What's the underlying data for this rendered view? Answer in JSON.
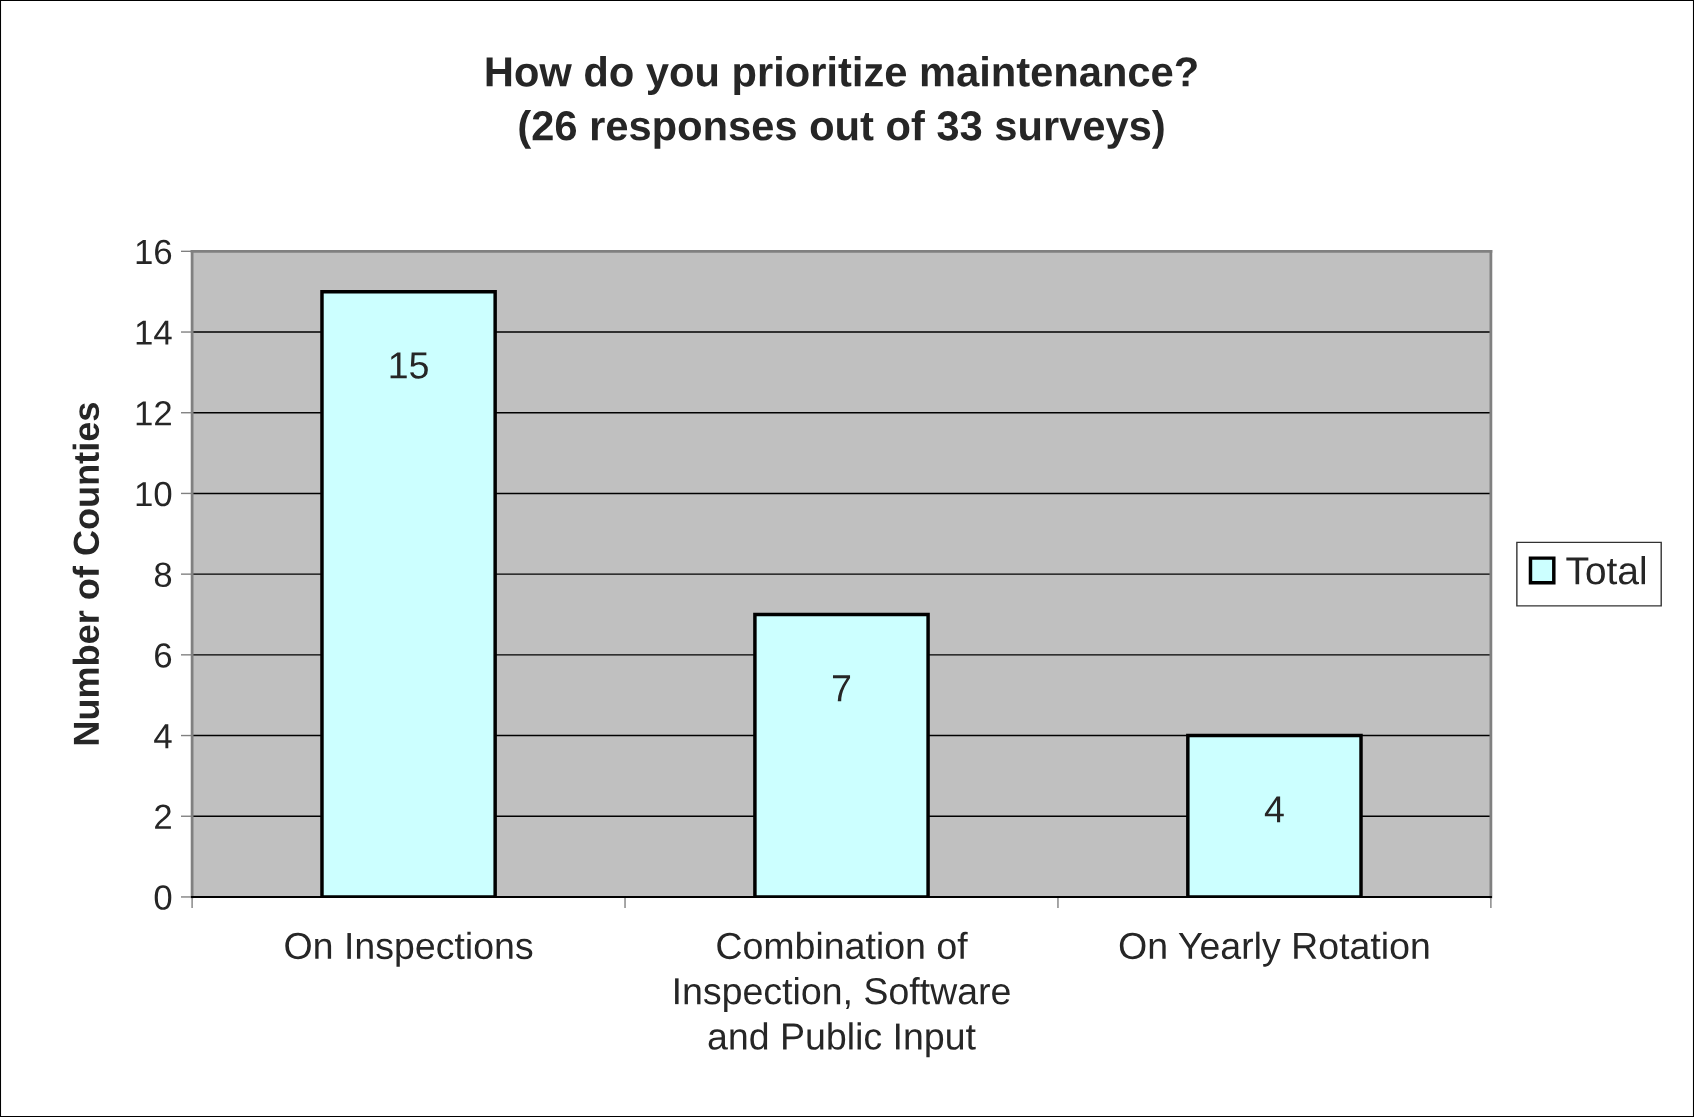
{
  "chart_data": {
    "type": "bar",
    "title": "How do you prioritize maintenance?\n(26 responses out of 33 surveys)",
    "ylabel": "Number of Counties",
    "categories": [
      "On Inspections",
      "Combination of\nInspection, Software\nand Public Input",
      "On Yearly Rotation"
    ],
    "series": [
      {
        "name": "Total",
        "color": "#ccffff",
        "values": [
          15,
          7,
          4
        ]
      }
    ],
    "ylim": [
      0,
      16
    ],
    "yticks": [
      0,
      2,
      4,
      6,
      8,
      10,
      12,
      14,
      16
    ],
    "grid": "y",
    "legend": "right",
    "data_labels": true
  }
}
